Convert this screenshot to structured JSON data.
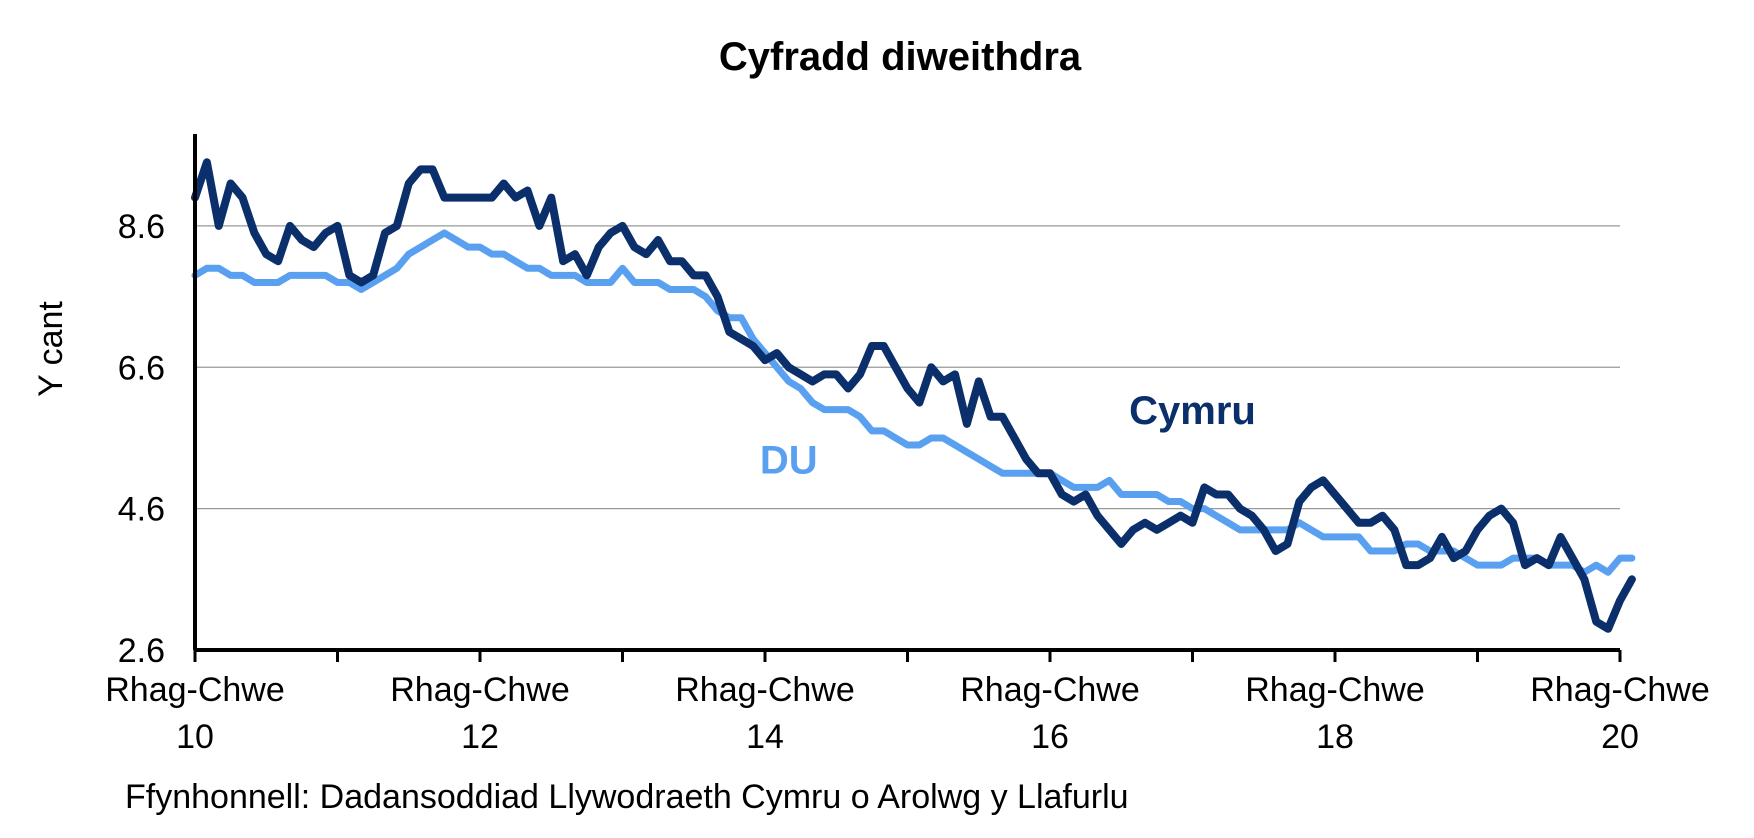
{
  "chart_data": {
    "type": "line",
    "title": "Cyfradd diweithdra",
    "ylabel": "Y cant",
    "xlabel": "",
    "source": "Ffynhonnell: Dadansoddiad Llywodraeth Cymru o Arolwg y Llafurlu",
    "ylim": [
      2.6,
      9.9
    ],
    "yticks": [
      2.6,
      4.6,
      6.6,
      8.6
    ],
    "grid": true,
    "x_range": [
      0,
      120
    ],
    "xticks_labeled": [
      {
        "x": 0,
        "line1": "Rhag-Chwe",
        "line2": "10"
      },
      {
        "x": 24,
        "line1": "Rhag-Chwe",
        "line2": "12"
      },
      {
        "x": 48,
        "line1": "Rhag-Chwe",
        "line2": "14"
      },
      {
        "x": 72,
        "line1": "Rhag-Chwe",
        "line2": "16"
      },
      {
        "x": 96,
        "line1": "Rhag-Chwe",
        "line2": "18"
      },
      {
        "x": 120,
        "line1": "Rhag-Chwe",
        "line2": "20"
      }
    ],
    "xticks_minor": [
      12,
      36,
      60,
      84,
      108
    ],
    "series": [
      {
        "name": "DU",
        "color": "#5aa0f0",
        "label_pos": [
          50,
          5.1
        ],
        "values": [
          7.9,
          8.0,
          8.0,
          7.9,
          7.9,
          7.8,
          7.8,
          7.8,
          7.9,
          7.9,
          7.9,
          7.9,
          7.8,
          7.8,
          7.7,
          7.8,
          7.9,
          8.0,
          8.2,
          8.3,
          8.4,
          8.5,
          8.4,
          8.3,
          8.3,
          8.2,
          8.2,
          8.1,
          8.0,
          8.0,
          7.9,
          7.9,
          7.9,
          7.8,
          7.8,
          7.8,
          8.0,
          7.8,
          7.8,
          7.8,
          7.7,
          7.7,
          7.7,
          7.6,
          7.4,
          7.3,
          7.3,
          7.0,
          6.8,
          6.6,
          6.4,
          6.3,
          6.1,
          6.0,
          6.0,
          6.0,
          5.9,
          5.7,
          5.7,
          5.6,
          5.5,
          5.5,
          5.6,
          5.6,
          5.5,
          5.4,
          5.3,
          5.2,
          5.1,
          5.1,
          5.1,
          5.1,
          5.1,
          5.0,
          4.9,
          4.9,
          4.9,
          5.0,
          4.8,
          4.8,
          4.8,
          4.8,
          4.7,
          4.7,
          4.6,
          4.6,
          4.5,
          4.4,
          4.3,
          4.3,
          4.3,
          4.3,
          4.3,
          4.4,
          4.3,
          4.2,
          4.2,
          4.2,
          4.2,
          4.0,
          4.0,
          4.0,
          4.1,
          4.1,
          4.0,
          4.0,
          4.0,
          3.9,
          3.8,
          3.8,
          3.8,
          3.9,
          3.9,
          3.9,
          3.8,
          3.8,
          3.8,
          3.7,
          3.8,
          3.7,
          3.9,
          3.9
        ]
      },
      {
        "name": "Cymru",
        "color": "#0b2f6b",
        "label_pos": [
          84,
          5.8
        ],
        "values": [
          9.0,
          9.5,
          8.6,
          9.2,
          9.0,
          8.5,
          8.2,
          8.1,
          8.6,
          8.4,
          8.3,
          8.5,
          8.6,
          7.9,
          7.8,
          7.9,
          8.5,
          8.6,
          9.2,
          9.4,
          9.4,
          9.0,
          9.0,
          9.0,
          9.0,
          9.0,
          9.2,
          9.0,
          9.1,
          8.6,
          9.0,
          8.1,
          8.2,
          7.9,
          8.3,
          8.5,
          8.6,
          8.3,
          8.2,
          8.4,
          8.1,
          8.1,
          7.9,
          7.9,
          7.6,
          7.1,
          7.0,
          6.9,
          6.7,
          6.8,
          6.6,
          6.5,
          6.4,
          6.5,
          6.5,
          6.3,
          6.5,
          6.9,
          6.9,
          6.6,
          6.3,
          6.1,
          6.6,
          6.4,
          6.5,
          5.8,
          6.4,
          5.9,
          5.9,
          5.6,
          5.3,
          5.1,
          5.1,
          4.8,
          4.7,
          4.8,
          4.5,
          4.3,
          4.1,
          4.3,
          4.4,
          4.3,
          4.4,
          4.5,
          4.4,
          4.9,
          4.8,
          4.8,
          4.6,
          4.5,
          4.3,
          4.0,
          4.1,
          4.7,
          4.9,
          5.0,
          4.8,
          4.6,
          4.4,
          4.4,
          4.5,
          4.3,
          3.8,
          3.8,
          3.9,
          4.2,
          3.9,
          4.0,
          4.3,
          4.5,
          4.6,
          4.4,
          3.8,
          3.9,
          3.8,
          4.2,
          3.9,
          3.6,
          3.0,
          2.9,
          3.3,
          3.6
        ]
      }
    ]
  }
}
